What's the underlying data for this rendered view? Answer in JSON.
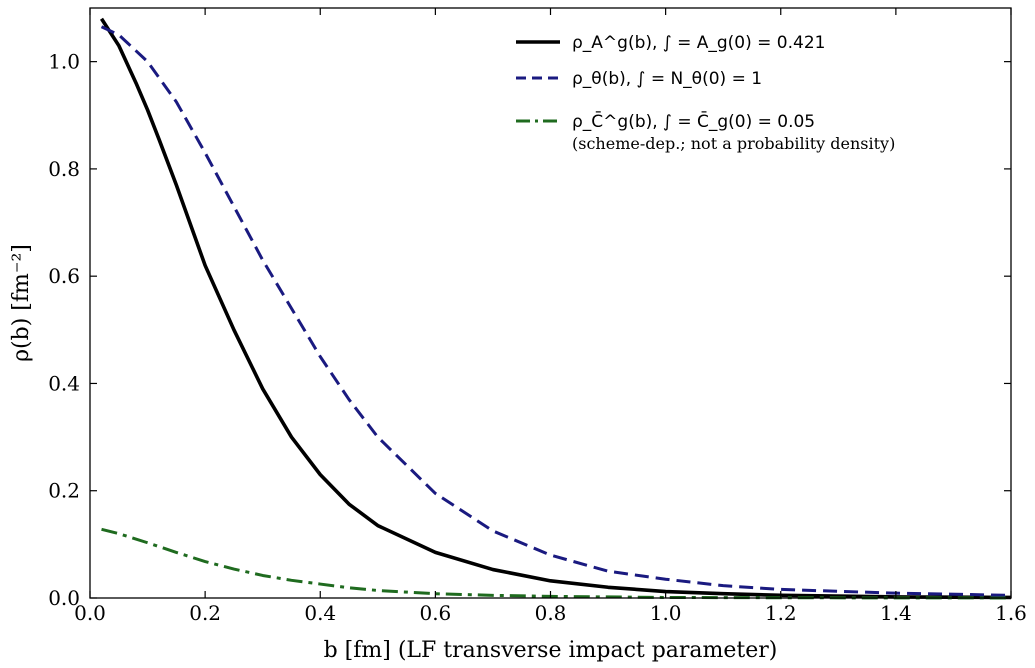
{
  "chart_data": {
    "type": "line",
    "xlabel": "b [fm]  (LF transverse impact parameter)",
    "ylabel": "ρ(b) [fm⁻²]",
    "xlim": [
      0.0,
      1.6
    ],
    "ylim": [
      0.0,
      1.1
    ],
    "x_ticks": [
      "0.0",
      "0.2",
      "0.4",
      "0.6",
      "0.8",
      "1.0",
      "1.2",
      "1.4",
      "1.6"
    ],
    "y_ticks": [
      "0.0",
      "0.2",
      "0.4",
      "0.6",
      "0.8",
      "1.0"
    ],
    "x_tick_values": [
      0.0,
      0.2,
      0.4,
      0.6,
      0.8,
      1.0,
      1.2,
      1.4,
      1.6
    ],
    "y_tick_values": [
      0.0,
      0.2,
      0.4,
      0.6,
      0.8,
      1.0
    ],
    "grid": false,
    "legend_position": "top-right",
    "series": [
      {
        "name": "ρ_A^g(b), ∫ = A_g(0) = 0.421",
        "color": "#000000",
        "dash": "solid",
        "x": [
          0.02,
          0.05,
          0.08,
          0.1,
          0.12,
          0.15,
          0.18,
          0.2,
          0.25,
          0.3,
          0.35,
          0.4,
          0.45,
          0.5,
          0.6,
          0.7,
          0.8,
          0.9,
          1.0,
          1.1,
          1.2,
          1.4,
          1.6
        ],
        "y": [
          1.08,
          1.03,
          0.96,
          0.91,
          0.855,
          0.77,
          0.68,
          0.62,
          0.5,
          0.39,
          0.3,
          0.23,
          0.175,
          0.135,
          0.085,
          0.053,
          0.032,
          0.02,
          0.012,
          0.008,
          0.005,
          0.002,
          0.001
        ]
      },
      {
        "name": "ρ_θ(b), ∫ = N_θ(0) = 1",
        "color": "#1a1a80",
        "dash": "dashed",
        "x": [
          0.02,
          0.05,
          0.1,
          0.15,
          0.2,
          0.25,
          0.3,
          0.35,
          0.4,
          0.45,
          0.5,
          0.6,
          0.7,
          0.8,
          0.9,
          1.0,
          1.1,
          1.2,
          1.4,
          1.6
        ],
        "y": [
          1.065,
          1.05,
          1.0,
          0.925,
          0.83,
          0.73,
          0.63,
          0.54,
          0.45,
          0.37,
          0.3,
          0.195,
          0.125,
          0.08,
          0.05,
          0.035,
          0.023,
          0.016,
          0.009,
          0.005
        ]
      },
      {
        "name": "ρ_C̄^g(b), ∫ = C̄_g(0) = 0.05",
        "note": "(scheme-dep.; not a probability density)",
        "color": "#1f6b1f",
        "dash": "dashdot",
        "x": [
          0.02,
          0.05,
          0.1,
          0.15,
          0.2,
          0.25,
          0.3,
          0.35,
          0.4,
          0.45,
          0.5,
          0.6,
          0.7,
          0.8,
          0.9,
          1.0,
          1.2,
          1.4,
          1.6
        ],
        "y": [
          0.128,
          0.12,
          0.103,
          0.085,
          0.068,
          0.054,
          0.042,
          0.033,
          0.026,
          0.019,
          0.014,
          0.008,
          0.005,
          0.003,
          0.002,
          0.001,
          0.0005,
          0.0002,
          0.0001
        ]
      }
    ]
  }
}
